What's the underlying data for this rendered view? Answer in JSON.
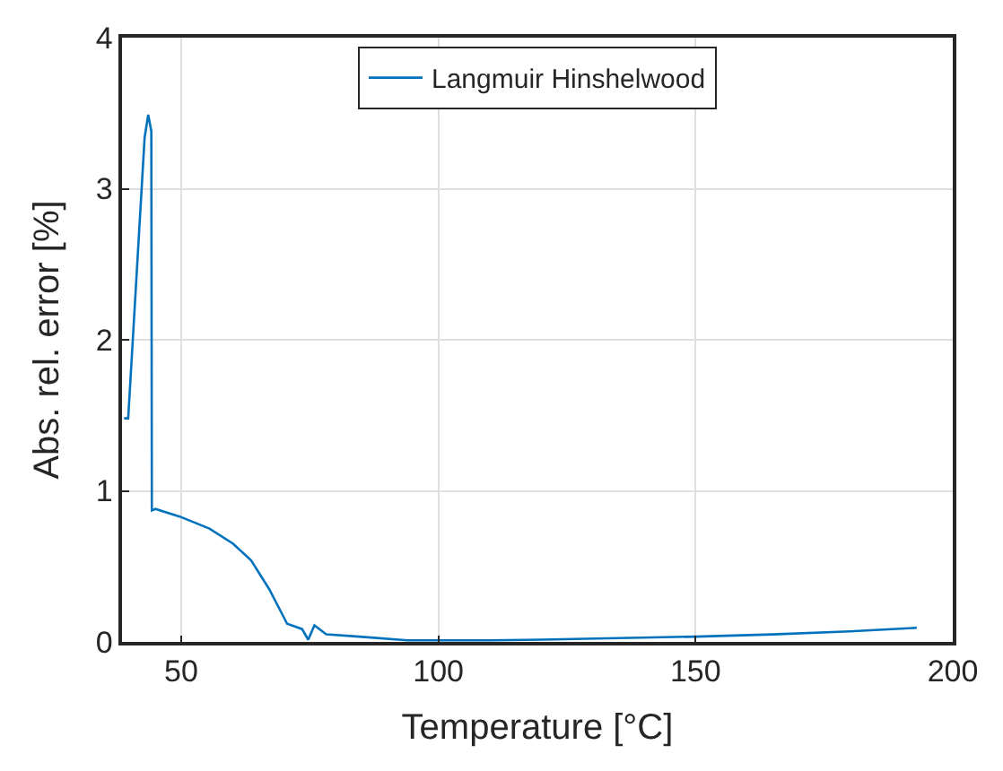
{
  "chart_data": {
    "type": "line",
    "xlabel": "Temperature [°C]",
    "ylabel": "Abs. rel. error [%]",
    "xlim": [
      38.5,
      200
    ],
    "ylim": [
      0,
      4
    ],
    "xticks": [
      50,
      100,
      150,
      200
    ],
    "yticks": [
      0,
      1,
      2,
      3,
      4
    ],
    "grid": true,
    "legend": "top",
    "line_style": "solid",
    "marker": "none",
    "series": [
      {
        "name": "Langmuir Hinshelwood",
        "color": "#0072bd",
        "x": [
          38.9,
          39.7,
          40.6,
          42.9,
          43.6,
          44.2,
          44.3,
          45.0,
          49.7,
          55.5,
          60.1,
          63.6,
          67.1,
          70.6,
          73.5,
          74.7,
          75.9,
          78.2,
          84.6,
          94,
          100,
          110,
          120,
          135,
          150,
          165,
          180,
          193
        ],
        "values": [
          1.48,
          1.48,
          2.0,
          3.34,
          3.49,
          3.38,
          0.87,
          0.88,
          0.83,
          0.75,
          0.65,
          0.54,
          0.35,
          0.12,
          0.085,
          0.015,
          0.11,
          0.05,
          0.035,
          0.01,
          0.01,
          0.01,
          0.015,
          0.025,
          0.035,
          0.05,
          0.07,
          0.093
        ]
      }
    ]
  }
}
